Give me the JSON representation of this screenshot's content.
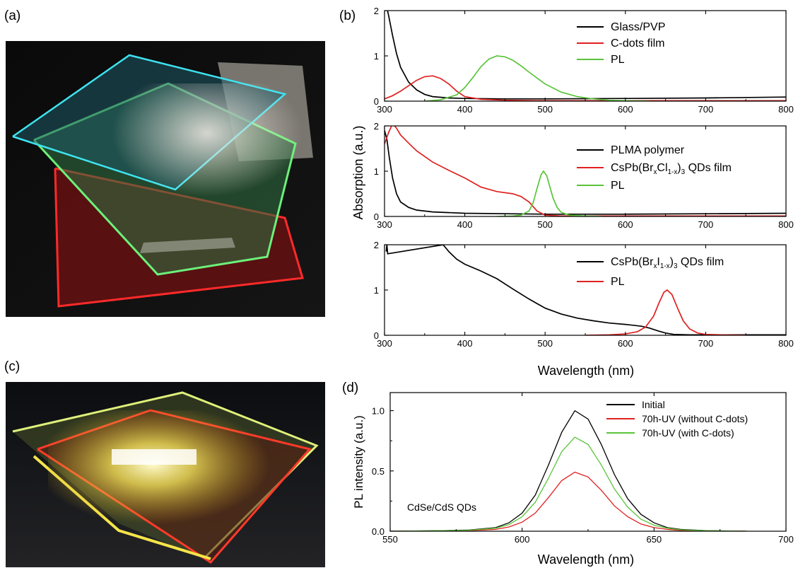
{
  "panels": {
    "a": "(a)",
    "b": "(b)",
    "c": "(c)",
    "d": "(d)"
  },
  "photo_a": {
    "description_colors": [
      "#1fd0e0",
      "#3fe86a",
      "#e8202a"
    ]
  },
  "photo_c": {
    "description_colors": [
      "#f5e84a",
      "#ff3030",
      "#7fe070"
    ]
  },
  "chart_data": [
    {
      "type": "line",
      "panel": "b-top",
      "xlim": [
        300,
        800
      ],
      "ylim": [
        0,
        2
      ],
      "xticks": [
        "300",
        "400",
        "500",
        "600",
        "700",
        "800"
      ],
      "yticks": [
        "0",
        "1",
        "2"
      ],
      "series": [
        {
          "name": "Glass/PVP",
          "color": "#000000",
          "x": [
            300,
            305,
            310,
            315,
            320,
            330,
            340,
            350,
            360,
            380,
            400,
            450,
            500,
            600,
            700,
            800
          ],
          "y": [
            2.3,
            1.9,
            1.45,
            1.05,
            0.75,
            0.42,
            0.25,
            0.15,
            0.1,
            0.07,
            0.06,
            0.05,
            0.05,
            0.06,
            0.07,
            0.09
          ]
        },
        {
          "name": "C-dots film",
          "color": "#e02020",
          "x": [
            300,
            310,
            320,
            330,
            340,
            350,
            360,
            370,
            380,
            390,
            400,
            420,
            450,
            500,
            600,
            800
          ],
          "y": [
            0.05,
            0.12,
            0.22,
            0.34,
            0.46,
            0.54,
            0.56,
            0.5,
            0.38,
            0.22,
            0.1,
            0.04,
            0.02,
            0.01,
            0.01,
            0.01
          ]
        },
        {
          "name": "PL",
          "color": "#5ac43a",
          "x": [
            350,
            370,
            390,
            400,
            410,
            420,
            430,
            440,
            450,
            460,
            470,
            480,
            500,
            520,
            540,
            560,
            580,
            600,
            630
          ],
          "y": [
            0.0,
            0.03,
            0.14,
            0.3,
            0.52,
            0.76,
            0.93,
            1.0,
            0.98,
            0.9,
            0.78,
            0.64,
            0.38,
            0.2,
            0.1,
            0.05,
            0.02,
            0.01,
            0.0
          ]
        }
      ],
      "legend": "top-right"
    },
    {
      "type": "line",
      "panel": "b-middle",
      "xlim": [
        300,
        800
      ],
      "ylim": [
        0,
        2
      ],
      "xticks": [
        "300",
        "400",
        "500",
        "600",
        "700",
        "800"
      ],
      "yticks": [
        "0",
        "1",
        "2"
      ],
      "series": [
        {
          "name": "PLMA polymer",
          "color": "#000000",
          "x": [
            300,
            303,
            306,
            310,
            315,
            320,
            330,
            340,
            360,
            400,
            500,
            600,
            700,
            800
          ],
          "y": [
            1.9,
            1.7,
            1.3,
            0.85,
            0.5,
            0.32,
            0.2,
            0.14,
            0.1,
            0.07,
            0.05,
            0.05,
            0.06,
            0.07
          ]
        },
        {
          "name": "CsPb(BrxCl1-x)3 QDs film",
          "color": "#e02020",
          "x": [
            300,
            305,
            310,
            315,
            320,
            330,
            340,
            360,
            380,
            400,
            420,
            440,
            460,
            470,
            480,
            490,
            500,
            520,
            600,
            800
          ],
          "y": [
            1.6,
            1.85,
            2.05,
            1.95,
            1.8,
            1.62,
            1.45,
            1.2,
            1.02,
            0.85,
            0.65,
            0.55,
            0.5,
            0.44,
            0.32,
            0.12,
            0.03,
            0.01,
            0.01,
            0.01
          ]
        },
        {
          "name": "PL",
          "color": "#5ac43a",
          "x": [
            440,
            460,
            470,
            480,
            485,
            490,
            495,
            498,
            502,
            506,
            510,
            515,
            520,
            530,
            550,
            570
          ],
          "y": [
            0.0,
            0.01,
            0.03,
            0.12,
            0.3,
            0.62,
            0.92,
            1.0,
            0.9,
            0.65,
            0.4,
            0.2,
            0.09,
            0.03,
            0.01,
            0.0
          ]
        }
      ],
      "legend": "top-right"
    },
    {
      "type": "line",
      "panel": "b-bottom",
      "xlim": [
        300,
        800
      ],
      "ylim": [
        0,
        2
      ],
      "xticks": [
        "300",
        "400",
        "500",
        "600",
        "700",
        "800"
      ],
      "yticks": [
        "0",
        "1",
        "2"
      ],
      "ylabel": "Absorption (a.u.)",
      "xlabel": "Wavelength (nm)",
      "series": [
        {
          "name": "CsPb(BrxI1-x)3 QDs film",
          "color": "#000000",
          "x": [
            302,
            303,
            304,
            373,
            380,
            390,
            400,
            420,
            440,
            460,
            480,
            500,
            520,
            540,
            560,
            580,
            600,
            620,
            630,
            640,
            650,
            660,
            680,
            700,
            800
          ],
          "y": [
            1.85,
            2.0,
            1.8,
            2.0,
            1.85,
            1.68,
            1.57,
            1.42,
            1.25,
            1.02,
            0.8,
            0.6,
            0.47,
            0.38,
            0.32,
            0.27,
            0.24,
            0.2,
            0.16,
            0.1,
            0.05,
            0.02,
            0.01,
            0.01,
            0.01
          ]
        },
        {
          "name": "PL",
          "color": "#e02020",
          "x": [
            550,
            580,
            600,
            615,
            625,
            635,
            642,
            648,
            652,
            658,
            665,
            672,
            680,
            690,
            700,
            720,
            750
          ],
          "y": [
            0.0,
            0.01,
            0.03,
            0.08,
            0.18,
            0.42,
            0.72,
            0.95,
            1.0,
            0.9,
            0.6,
            0.32,
            0.14,
            0.05,
            0.02,
            0.01,
            0.0
          ]
        }
      ],
      "legend": "top-right"
    },
    {
      "type": "line",
      "panel": "d",
      "xlim": [
        550,
        700
      ],
      "ylim": [
        0,
        1.15
      ],
      "xticks": [
        "550",
        "600",
        "650",
        "700"
      ],
      "yticks": [
        "0.0",
        "0.5",
        "1.0"
      ],
      "xlabel": "Wavelength (nm)",
      "ylabel": "PL intensity (a.u.)",
      "annotation": "CdSe/CdS QDs",
      "series": [
        {
          "name": "Initial",
          "color": "#000000",
          "x": [
            550,
            570,
            580,
            590,
            595,
            600,
            605,
            610,
            615,
            620,
            625,
            630,
            635,
            640,
            645,
            650,
            655,
            660,
            670,
            685
          ],
          "y": [
            0.0,
            0.005,
            0.01,
            0.03,
            0.07,
            0.15,
            0.3,
            0.55,
            0.82,
            1.0,
            0.93,
            0.72,
            0.47,
            0.27,
            0.14,
            0.07,
            0.03,
            0.015,
            0.005,
            0.0
          ]
        },
        {
          "name": "70h-UV (without C-dots)",
          "color": "#e02020",
          "x": [
            550,
            570,
            580,
            590,
            595,
            600,
            605,
            610,
            615,
            620,
            625,
            630,
            635,
            640,
            645,
            650,
            655,
            660,
            670,
            685
          ],
          "y": [
            0.0,
            0.003,
            0.005,
            0.015,
            0.035,
            0.075,
            0.15,
            0.28,
            0.42,
            0.49,
            0.45,
            0.34,
            0.21,
            0.12,
            0.06,
            0.03,
            0.015,
            0.007,
            0.003,
            0.0
          ]
        },
        {
          "name": "70h-UV (with C-dots)",
          "color": "#5ac43a",
          "x": [
            550,
            570,
            580,
            590,
            595,
            600,
            605,
            610,
            615,
            620,
            625,
            630,
            635,
            640,
            645,
            650,
            655,
            660,
            670,
            685
          ],
          "y": [
            0.0,
            0.004,
            0.008,
            0.025,
            0.055,
            0.12,
            0.24,
            0.44,
            0.66,
            0.78,
            0.72,
            0.55,
            0.35,
            0.2,
            0.1,
            0.05,
            0.025,
            0.012,
            0.004,
            0.0
          ]
        }
      ],
      "legend": "top-right"
    }
  ]
}
